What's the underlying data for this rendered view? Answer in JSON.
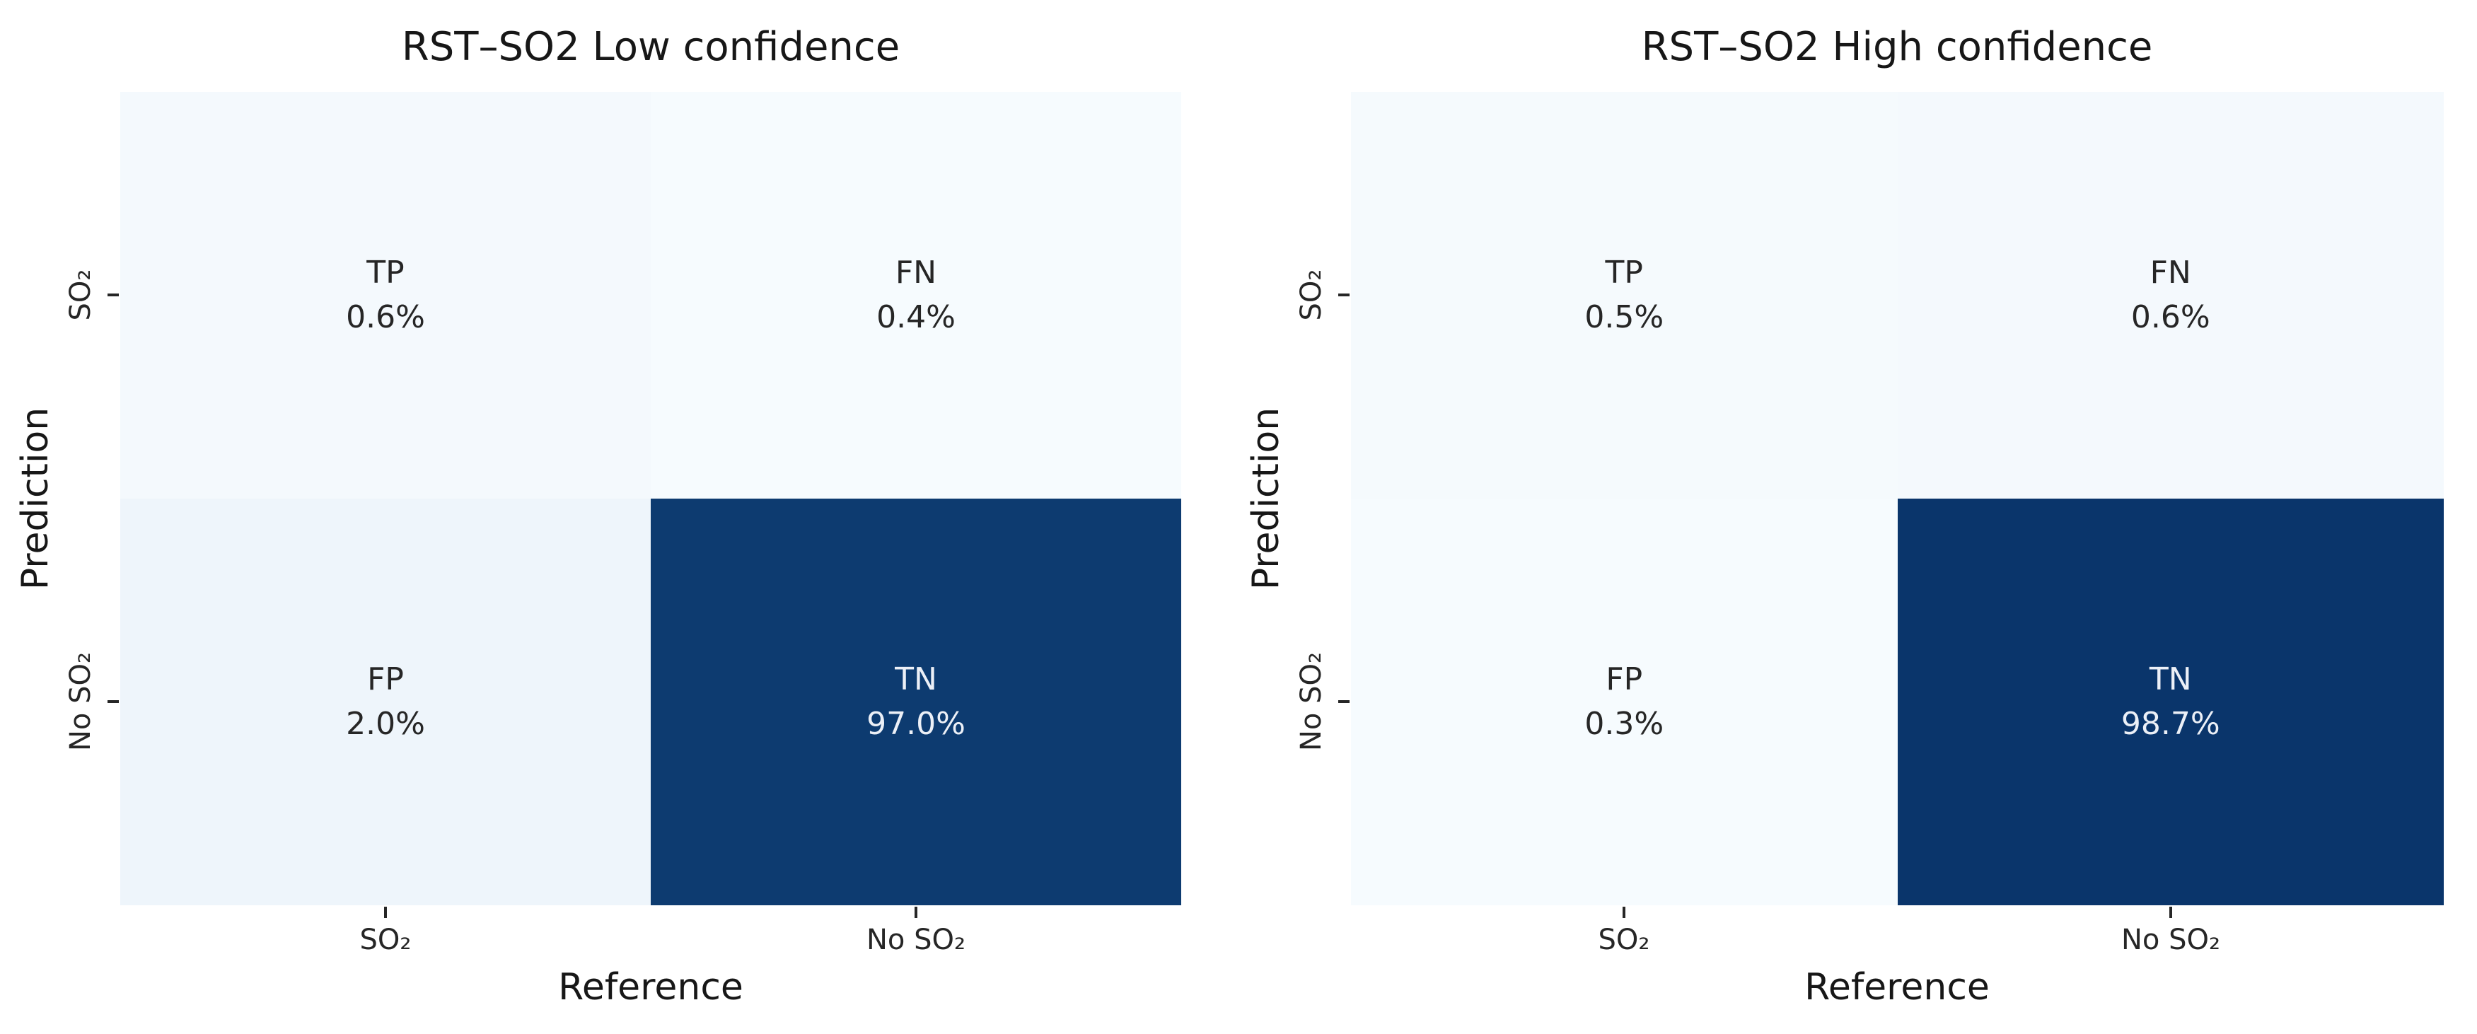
{
  "figure": {
    "background": "#ffffff",
    "colormap": "Blues",
    "accent_dark": "#0c3a70",
    "accent_light": "#f5fafd"
  },
  "panels": [
    {
      "title": "RST–SO2 Low confidence",
      "xlabel": "Reference",
      "ylabel": "Prediction",
      "xticks": [
        "SO₂",
        "No SO₂"
      ],
      "yticks": [
        "SO₂",
        "No SO₂"
      ],
      "cells": [
        {
          "name": "TP",
          "value": "0.6%",
          "bg": "#f4f9fd",
          "fg": "#262626"
        },
        {
          "name": "FN",
          "value": "0.4%",
          "bg": "#f6fbfe",
          "fg": "#262626"
        },
        {
          "name": "FP",
          "value": "2.0%",
          "bg": "#eef5fb",
          "fg": "#262626"
        },
        {
          "name": "TN",
          "value": "97.0%",
          "bg": "#0d3b70",
          "fg": "#ecf0f7"
        }
      ]
    },
    {
      "title": "RST–SO2 High confidence",
      "xlabel": "Reference",
      "ylabel": "Prediction",
      "xticks": [
        "SO₂",
        "No SO₂"
      ],
      "yticks": [
        "SO₂",
        "No SO₂"
      ],
      "cells": [
        {
          "name": "TP",
          "value": "0.5%",
          "bg": "#f5fafd",
          "fg": "#262626"
        },
        {
          "name": "FN",
          "value": "0.6%",
          "bg": "#f4f9fd",
          "fg": "#262626"
        },
        {
          "name": "FP",
          "value": "0.3%",
          "bg": "#f6fbfe",
          "fg": "#262626"
        },
        {
          "name": "TN",
          "value": "98.7%",
          "bg": "#0a356b",
          "fg": "#ecf0f7"
        }
      ]
    }
  ],
  "chart_data": [
    {
      "type": "heatmap",
      "title": "RST–SO2 Low confidence",
      "xlabel": "Reference",
      "ylabel": "Prediction",
      "x_categories": [
        "SO₂",
        "No SO₂"
      ],
      "y_categories": [
        "SO₂",
        "No SO₂"
      ],
      "cell_labels": [
        [
          "TP",
          "FN"
        ],
        [
          "FP",
          "TN"
        ]
      ],
      "values_percent": [
        [
          0.6,
          0.4
        ],
        [
          2.0,
          97.0
        ]
      ],
      "colormap": "Blues",
      "legend": "none",
      "grid": false
    },
    {
      "type": "heatmap",
      "title": "RST–SO2 High confidence",
      "xlabel": "Reference",
      "ylabel": "Prediction",
      "x_categories": [
        "SO₂",
        "No SO₂"
      ],
      "y_categories": [
        "SO₂",
        "No SO₂"
      ],
      "cell_labels": [
        [
          "TP",
          "FN"
        ],
        [
          "FP",
          "TN"
        ]
      ],
      "values_percent": [
        [
          0.5,
          0.6
        ],
        [
          0.3,
          98.7
        ]
      ],
      "colormap": "Blues",
      "legend": "none",
      "grid": false
    }
  ]
}
